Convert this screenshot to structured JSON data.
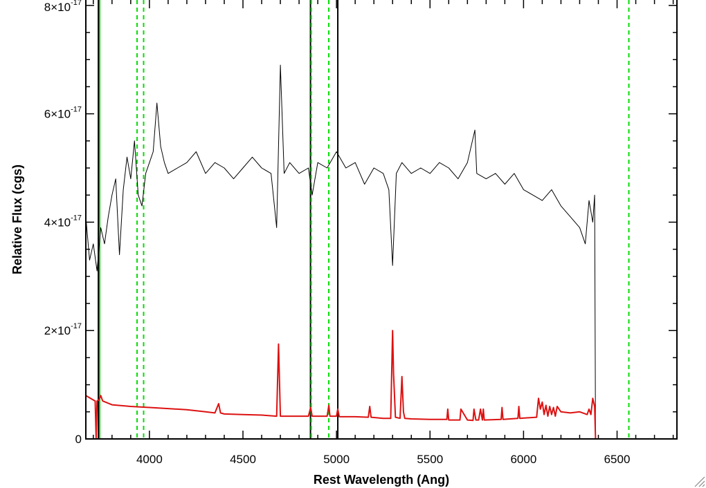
{
  "chart_data": {
    "type": "line",
    "xlabel": "Rest Wavelength (Ang)",
    "ylabel": "Relative Flux (cgs)",
    "xlim": [
      3660,
      6820
    ],
    "ylim": [
      0,
      8.1e-17
    ],
    "x_ticks": [
      {
        "value": 4000,
        "label": "4000"
      },
      {
        "value": 4500,
        "label": "4500"
      },
      {
        "value": 5000,
        "label": "5000"
      },
      {
        "value": 5500,
        "label": "5500"
      },
      {
        "value": 6000,
        "label": "6000"
      },
      {
        "value": 6500,
        "label": "6500"
      }
    ],
    "y_ticks": [
      {
        "value": 0,
        "label": "0",
        "exponent": ""
      },
      {
        "value": 2e-17,
        "label": "2×10",
        "exponent": "-17"
      },
      {
        "value": 4e-17,
        "label": "4×10",
        "exponent": "-17"
      },
      {
        "value": 6e-17,
        "label": "6×10",
        "exponent": "-17"
      },
      {
        "value": 8e-17,
        "label": "8×10",
        "exponent": "-17"
      }
    ],
    "grid": false,
    "series": [
      {
        "color": "#000000",
        "x": [
          3660,
          3680,
          3700,
          3720,
          3740,
          3760,
          3780,
          3800,
          3820,
          3840,
          3860,
          3880,
          3900,
          3920,
          3940,
          3960,
          3980,
          4000,
          4020,
          4040,
          4060,
          4080,
          4100,
          4150,
          4200,
          4250,
          4300,
          4350,
          4400,
          4450,
          4500,
          4550,
          4600,
          4650,
          4680,
          4700,
          4720,
          4750,
          4800,
          4850,
          4870,
          4900,
          4950,
          5000,
          5050,
          5100,
          5150,
          5200,
          5250,
          5280,
          5300,
          5320,
          5350,
          5400,
          5450,
          5500,
          5550,
          5600,
          5650,
          5700,
          5740,
          5750,
          5800,
          5850,
          5900,
          5950,
          6000,
          6050,
          6100,
          6150,
          6200,
          6250,
          6300,
          6330,
          6350,
          6370,
          6380,
          6385,
          6800
        ],
        "y": [
          4.1e-17,
          3.3e-17,
          3.6e-17,
          3.1e-17,
          3.9e-17,
          3.6e-17,
          4.1e-17,
          4.5e-17,
          4.8e-17,
          3.4e-17,
          4.6e-17,
          5.2e-17,
          4.8e-17,
          5.5e-17,
          4.5e-17,
          4.3e-17,
          4.9e-17,
          5.1e-17,
          5.3e-17,
          6.2e-17,
          5.4e-17,
          5.1e-17,
          4.9e-17,
          5e-17,
          5.1e-17,
          5.3e-17,
          4.9e-17,
          5.1e-17,
          5e-17,
          4.8e-17,
          5e-17,
          5.2e-17,
          5e-17,
          4.9e-17,
          3.9e-17,
          6.9e-17,
          4.9e-17,
          5.1e-17,
          4.9e-17,
          5e-17,
          4.5e-17,
          5.1e-17,
          5e-17,
          5.3e-17,
          5e-17,
          5.1e-17,
          4.7e-17,
          5e-17,
          4.9e-17,
          4.6e-17,
          3.2e-17,
          4.9e-17,
          5.1e-17,
          4.9e-17,
          5e-17,
          4.9e-17,
          5.1e-17,
          5e-17,
          4.8e-17,
          5.1e-17,
          5.7e-17,
          4.9e-17,
          4.8e-17,
          4.9e-17,
          4.7e-17,
          4.9e-17,
          4.6e-17,
          4.5e-17,
          4.4e-17,
          4.6e-17,
          4.3e-17,
          4.1e-17,
          3.9e-17,
          3.6e-17,
          4.4e-17,
          4e-17,
          4.5e-17,
          0.0,
          0.0
        ]
      },
      {
        "color": "#dd1111",
        "x": [
          3660,
          3700,
          3710,
          3715,
          3720,
          3730,
          3740,
          3750,
          3800,
          3900,
          4000,
          4100,
          4200,
          4300,
          4350,
          4370,
          4380,
          4400,
          4500,
          4600,
          4680,
          4690,
          4700,
          4710,
          4800,
          4850,
          4862,
          4870,
          4900,
          4950,
          4959,
          4965,
          5000,
          5007,
          5015,
          5100,
          5170,
          5178,
          5185,
          5250,
          5290,
          5300,
          5305,
          5315,
          5340,
          5350,
          5358,
          5365,
          5400,
          5500,
          5590,
          5595,
          5600,
          5650,
          5660,
          5665,
          5700,
          5730,
          5735,
          5745,
          5760,
          5770,
          5780,
          5785,
          5790,
          5880,
          5885,
          5890,
          5970,
          5975,
          5980,
          6070,
          6080,
          6090,
          6100,
          6110,
          6120,
          6130,
          6140,
          6150,
          6160,
          6170,
          6180,
          6200,
          6250,
          6300,
          6340,
          6350,
          6360,
          6370,
          6380,
          6385,
          6800
        ],
        "y": [
          8e-18,
          7.2e-18,
          7e-18,
          0.0,
          7e-18,
          7.2e-18,
          8e-18,
          7e-18,
          6.3e-18,
          6e-18,
          5.8e-18,
          5.6e-18,
          5.4e-18,
          5e-18,
          4.8e-18,
          6.5e-18,
          4.8e-18,
          4.6e-18,
          4.5e-18,
          4.4e-18,
          4.2e-18,
          1.75e-17,
          4.2e-18,
          4.2e-18,
          4.2e-18,
          4.2e-18,
          5.8e-18,
          4.2e-18,
          4.2e-18,
          4.2e-18,
          6.2e-18,
          4.2e-18,
          4.2e-18,
          5.5e-18,
          4.1e-18,
          4.1e-18,
          4e-18,
          6e-18,
          4e-18,
          3.8e-18,
          3.8e-18,
          2e-17,
          1.2e-17,
          4e-18,
          3.8e-18,
          1.15e-17,
          5e-18,
          3.8e-18,
          3.7e-18,
          3.6e-18,
          3.6e-18,
          5.5e-18,
          3.5e-18,
          3.5e-18,
          3.5e-18,
          5.5e-18,
          3.5e-18,
          3.4e-18,
          5.5e-18,
          3.5e-18,
          3.5e-18,
          5.5e-18,
          3.5e-18,
          5.5e-18,
          3.5e-18,
          3.6e-18,
          5.8e-18,
          3.6e-18,
          3.8e-18,
          6e-18,
          3.8e-18,
          4e-18,
          7.5e-18,
          5.5e-18,
          6.8e-18,
          4.5e-18,
          6.2e-18,
          4.2e-18,
          6e-18,
          4.5e-18,
          5.8e-18,
          4.2e-18,
          6e-18,
          5e-18,
          4.8e-18,
          5e-18,
          4.5e-18,
          5.5e-18,
          4.5e-18,
          7.5e-18,
          6e-18,
          0.0,
          0.0
        ]
      }
    ],
    "vertical_lines": [
      {
        "x": 3727,
        "color": "#000000",
        "style": "solid"
      },
      {
        "x": 3734,
        "color": "#00cc00",
        "style": "solid"
      },
      {
        "x": 3934,
        "color": "#00dd00",
        "style": "dashed"
      },
      {
        "x": 3969,
        "color": "#00dd00",
        "style": "dashed"
      },
      {
        "x": 4861,
        "color": "#000000",
        "style": "solid"
      },
      {
        "x": 4865,
        "color": "#00dd00",
        "style": "dashed"
      },
      {
        "x": 4959,
        "color": "#00dd00",
        "style": "dashed"
      },
      {
        "x": 5007,
        "color": "#000000",
        "style": "solid"
      },
      {
        "x": 6563,
        "color": "#00dd00",
        "style": "dashed"
      }
    ]
  }
}
